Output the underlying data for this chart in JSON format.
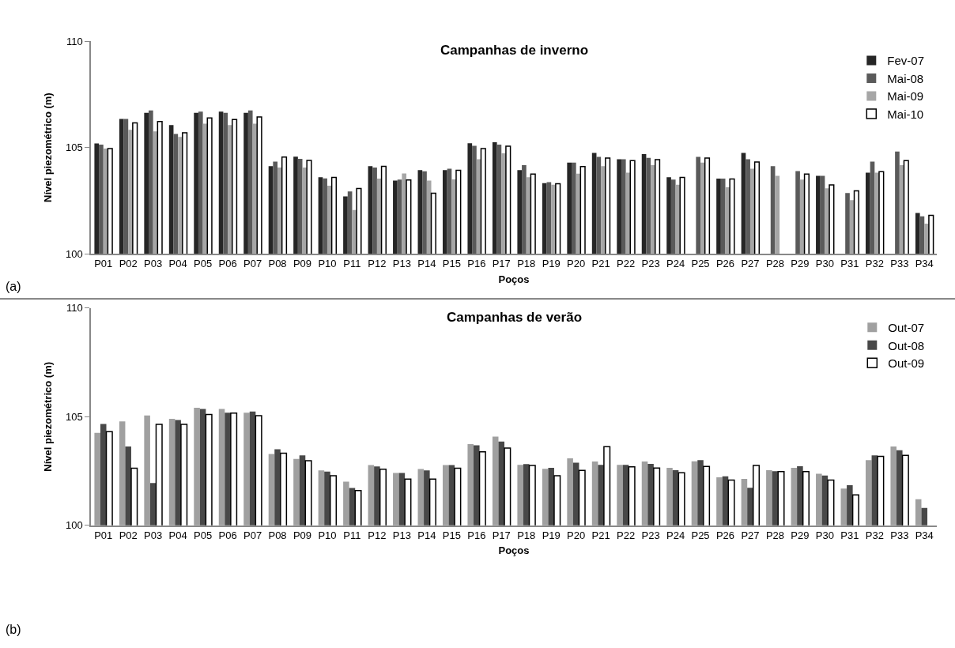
{
  "chart_data": [
    {
      "type": "bar",
      "title": "Campanhas de inverno",
      "xlabel": "Poços",
      "ylabel": "Nível piezométrico (m)",
      "annotations": [
        "(a)"
      ],
      "categories": [
        "P01",
        "P02",
        "P03",
        "P04",
        "P05",
        "P06",
        "P07",
        "P08",
        "P09",
        "P10",
        "P11",
        "P12",
        "P13",
        "P14",
        "P15",
        "P16",
        "P17",
        "P18",
        "P19",
        "P20",
        "P21",
        "P22",
        "P23",
        "P24",
        "P25",
        "P26",
        "P27",
        "P28",
        "P29",
        "P30",
        "P31",
        "P32",
        "P33",
        "P34"
      ],
      "ylim": [
        100,
        110
      ],
      "yticks": [
        100,
        105,
        110
      ],
      "grid": false,
      "legend": "top right",
      "series": [
        {
          "name": "Fev-07",
          "color": "#262626",
          "values": [
            105.19,
            106.34,
            106.63,
            106.06,
            106.63,
            106.69,
            106.63,
            104.12,
            104.57,
            103.6,
            102.7,
            104.12,
            103.44,
            103.94,
            103.94,
            105.2,
            105.25,
            103.94,
            103.32,
            104.29,
            104.75,
            104.45,
            104.69,
            103.6,
            null,
            103.54,
            104.75,
            null,
            null,
            103.67,
            null,
            103.82,
            null,
            101.92
          ]
        },
        {
          "name": "Mai-08",
          "color": "#5a5a5a",
          "values": [
            105.14,
            106.34,
            106.74,
            105.64,
            106.69,
            106.63,
            106.74,
            104.34,
            104.47,
            103.55,
            102.93,
            104.06,
            103.49,
            103.88,
            104.0,
            105.08,
            105.14,
            104.17,
            103.37,
            104.29,
            104.56,
            104.45,
            104.51,
            103.49,
            104.56,
            103.54,
            104.45,
            104.12,
            103.89,
            103.67,
            102.86,
            104.34,
            104.81,
            101.76
          ]
        },
        {
          "name": "Mai-09",
          "color": "#a6a6a6",
          "values": [
            104.95,
            105.83,
            105.76,
            105.5,
            106.12,
            106.06,
            106.12,
            104.06,
            104.06,
            103.2,
            102.06,
            103.54,
            103.78,
            103.44,
            103.5,
            104.45,
            104.73,
            103.6,
            103.25,
            103.77,
            104.12,
            103.82,
            104.17,
            103.25,
            104.29,
            103.13,
            104.0,
            103.67,
            103.49,
            103.08,
            102.52,
            103.82,
            104.17,
            101.42
          ]
        },
        {
          "name": "Mai-10",
          "color": "#ffffff",
          "values": [
            104.95,
            106.16,
            106.22,
            105.69,
            106.39,
            106.32,
            106.44,
            104.55,
            104.39,
            103.59,
            103.07,
            104.11,
            103.47,
            102.85,
            103.93,
            104.95,
            105.06,
            103.75,
            103.3,
            104.1,
            104.5,
            104.38,
            104.43,
            103.59,
            104.5,
            103.52,
            104.32,
            null,
            103.75,
            103.24,
            102.96,
            103.86,
            104.38,
            101.81
          ]
        }
      ]
    },
    {
      "type": "bar",
      "title": "Campanhas de verão",
      "xlabel": "Poços",
      "ylabel": "Nível piezométrico (m)",
      "annotations": [
        "(b)"
      ],
      "categories": [
        "P01",
        "P02",
        "P03",
        "P04",
        "P05",
        "P06",
        "P07",
        "P08",
        "P09",
        "P10",
        "P11",
        "P12",
        "P13",
        "P14",
        "P15",
        "P16",
        "P17",
        "P18",
        "P19",
        "P20",
        "P21",
        "P22",
        "P23",
        "P24",
        "P25",
        "P26",
        "P27",
        "P28",
        "P29",
        "P30",
        "P31",
        "P32",
        "P33",
        "P34"
      ],
      "ylim": [
        100,
        110
      ],
      "yticks": [
        100,
        105,
        110
      ],
      "grid": false,
      "legend": "top right",
      "series": [
        {
          "name": "Out-07",
          "color": "#a0a0a0",
          "values": [
            104.26,
            104.78,
            105.06,
            104.9,
            105.41,
            105.36,
            105.18,
            103.28,
            103.06,
            102.53,
            102.01,
            102.77,
            102.41,
            102.59,
            102.77,
            103.74,
            104.08,
            102.78,
            102.6,
            103.08,
            102.94,
            102.78,
            102.94,
            102.65,
            102.95,
            102.21,
            102.14,
            102.54,
            102.65,
            102.37,
            101.69,
            103.0,
            103.63,
            101.2
          ]
        },
        {
          "name": "Out-08",
          "color": "#484848",
          "values": [
            104.67,
            103.63,
            101.95,
            104.85,
            105.36,
            105.18,
            105.24,
            103.5,
            103.22,
            102.47,
            101.72,
            102.71,
            102.41,
            102.53,
            102.77,
            103.68,
            103.86,
            102.82,
            102.65,
            102.88,
            102.78,
            102.78,
            102.83,
            102.54,
            103.0,
            102.26,
            101.73,
            102.49,
            102.72,
            102.29,
            101.85,
            103.22,
            103.46,
            100.8
          ]
        },
        {
          "name": "Out-09",
          "color": "#ffffff",
          "values": [
            104.31,
            102.63,
            104.65,
            104.65,
            105.1,
            105.17,
            105.05,
            103.32,
            102.97,
            102.28,
            101.6,
            102.58,
            102.13,
            102.13,
            102.63,
            103.38,
            103.56,
            102.76,
            102.28,
            102.53,
            103.62,
            102.69,
            102.64,
            102.42,
            102.71,
            102.08,
            102.76,
            102.47,
            102.47,
            102.08,
            101.4,
            103.17,
            103.22,
            null
          ]
        }
      ]
    }
  ]
}
